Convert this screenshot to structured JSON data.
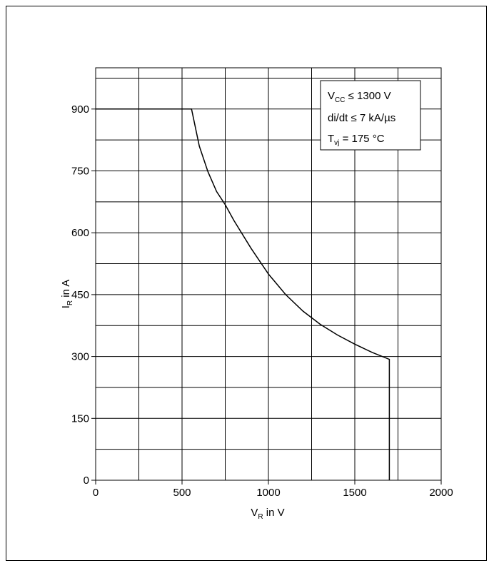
{
  "chart_data": {
    "type": "line",
    "xlim": [
      0,
      2000
    ],
    "ylim": [
      0,
      1000
    ],
    "x_ticks": [
      0,
      500,
      1000,
      1500,
      2000
    ],
    "y_ticks": [
      0,
      150,
      300,
      450,
      600,
      750,
      900
    ],
    "x_ticks_label": [
      "0",
      "500",
      "1000",
      "1500",
      "2000"
    ],
    "y_ticks_label": [
      "0",
      "150",
      "300",
      "450",
      "600",
      "750",
      "900"
    ],
    "xlabel_main": "V",
    "xlabel_sub": "R",
    "xlabel_rest": " in V",
    "ylabel_main": "I",
    "ylabel_sub": "R",
    "ylabel_rest": " in A",
    "grid": true,
    "series": [
      {
        "x": [
          0,
          555,
          600,
          650,
          700,
          750,
          800,
          900,
          1000,
          1100,
          1200,
          1300,
          1400,
          1500,
          1600,
          1700,
          1700
        ],
        "y": [
          900,
          900,
          810,
          748,
          700,
          668,
          630,
          562,
          500,
          450,
          410,
          378,
          352,
          330,
          310,
          293,
          0
        ]
      }
    ],
    "annotation": {
      "position": "top-right",
      "lines": [
        {
          "main": "V",
          "sub": "CC",
          "rest": " ≤ 1300 V"
        },
        {
          "main": "di/dt ≤ 7 kA/µs",
          "sub": "",
          "rest": ""
        },
        {
          "main": "T",
          "sub": "vj",
          "rest": " = 175 °C"
        }
      ]
    }
  }
}
